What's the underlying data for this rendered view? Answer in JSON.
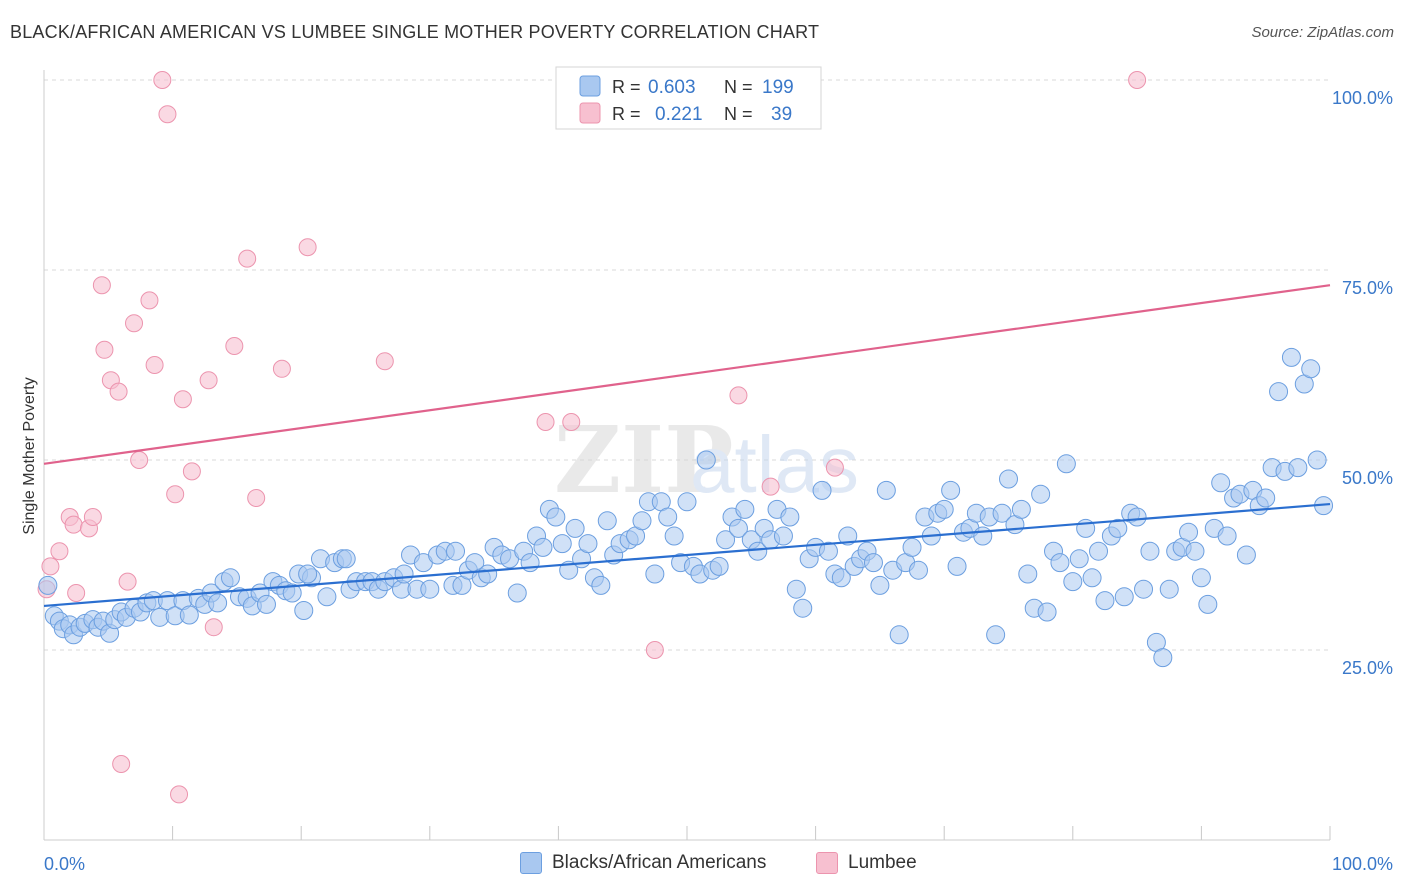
{
  "header": {
    "title": "BLACK/AFRICAN AMERICAN VS LUMBEE SINGLE MOTHER POVERTY CORRELATION CHART",
    "source": "Source: ZipAtlas.com"
  },
  "watermark": {
    "part1": "ZIP",
    "part2": "atlas"
  },
  "colors": {
    "blue_fill": "#a9c8f0",
    "blue_stroke": "#6c9fe0",
    "blue_line": "#2b6fd0",
    "pink_fill": "#f7c0d0",
    "pink_stroke": "#ec94ae",
    "pink_line": "#e0628c",
    "tick_label": "#3a78c9",
    "grid": "#d9d9d9"
  },
  "legend_top": {
    "rows": [
      {
        "r_label": "R =",
        "r_value": "0.603",
        "n_label": "N =",
        "n_value": "199"
      },
      {
        "r_label": "R =",
        "r_value": "0.221",
        "n_label": "N =",
        "n_value": "39"
      }
    ]
  },
  "legend_bottom": {
    "items": [
      "Blacks/African Americans",
      "Lumbee"
    ]
  },
  "chart_data": {
    "type": "scatter",
    "title": "BLACK/AFRICAN AMERICAN VS LUMBEE SINGLE MOTHER POVERTY CORRELATION CHART",
    "xlabel": "",
    "ylabel": "Single Mother Poverty",
    "xlim": [
      0,
      100
    ],
    "ylim": [
      0,
      105
    ],
    "y_ticks": [
      25,
      50,
      75,
      100
    ],
    "y_tick_labels": [
      "25.0%",
      "50.0%",
      "75.0%",
      "100.0%"
    ],
    "x_tick_labels": [
      "0.0%",
      "100.0%"
    ],
    "grid": true,
    "series": [
      {
        "name": "Blacks/African Americans",
        "R": 0.603,
        "N": 199,
        "trend": [
          [
            0,
            30.8
          ],
          [
            100,
            44.2
          ]
        ],
        "points": [
          [
            0.3,
            33.5
          ],
          [
            0.8,
            29.5
          ],
          [
            1.2,
            28.8
          ],
          [
            1.5,
            27.8
          ],
          [
            2.0,
            28.3
          ],
          [
            2.3,
            27.0
          ],
          [
            2.8,
            28.0
          ],
          [
            3.2,
            28.5
          ],
          [
            3.8,
            29.0
          ],
          [
            4.2,
            28.0
          ],
          [
            4.6,
            28.8
          ],
          [
            5.1,
            27.2
          ],
          [
            5.5,
            29.0
          ],
          [
            6.0,
            30.0
          ],
          [
            6.4,
            29.3
          ],
          [
            7.0,
            30.5
          ],
          [
            7.5,
            30.0
          ],
          [
            8.0,
            31.2
          ],
          [
            8.5,
            31.5
          ],
          [
            9.0,
            29.3
          ],
          [
            9.6,
            31.5
          ],
          [
            10.2,
            29.5
          ],
          [
            10.8,
            31.5
          ],
          [
            11.3,
            29.6
          ],
          [
            12.0,
            31.8
          ],
          [
            12.5,
            31.0
          ],
          [
            13.0,
            32.5
          ],
          [
            13.5,
            31.2
          ],
          [
            14.0,
            34.0
          ],
          [
            14.5,
            34.5
          ],
          [
            15.2,
            32.0
          ],
          [
            15.8,
            31.8
          ],
          [
            16.2,
            30.8
          ],
          [
            16.8,
            32.5
          ],
          [
            17.3,
            31.0
          ],
          [
            17.8,
            34.0
          ],
          [
            18.3,
            33.5
          ],
          [
            18.8,
            32.8
          ],
          [
            19.3,
            32.5
          ],
          [
            19.8,
            35.0
          ],
          [
            20.2,
            30.2
          ],
          [
            20.8,
            34.5
          ],
          [
            21.5,
            37.0
          ],
          [
            22.0,
            32.0
          ],
          [
            22.6,
            36.5
          ],
          [
            23.2,
            37.0
          ],
          [
            23.8,
            33.0
          ],
          [
            24.3,
            34.0
          ],
          [
            25.0,
            34.0
          ],
          [
            25.5,
            34.0
          ],
          [
            26.0,
            33.0
          ],
          [
            26.5,
            34.0
          ],
          [
            27.2,
            34.5
          ],
          [
            27.8,
            33.0
          ],
          [
            28.5,
            37.5
          ],
          [
            29.0,
            33.0
          ],
          [
            29.5,
            36.5
          ],
          [
            30.0,
            33.0
          ],
          [
            30.6,
            37.5
          ],
          [
            31.2,
            38.0
          ],
          [
            31.8,
            33.5
          ],
          [
            32.5,
            33.5
          ],
          [
            33.0,
            35.5
          ],
          [
            33.5,
            36.5
          ],
          [
            34.0,
            34.5
          ],
          [
            34.5,
            35.0
          ],
          [
            35.0,
            38.5
          ],
          [
            35.6,
            37.5
          ],
          [
            36.2,
            37.0
          ],
          [
            36.8,
            32.5
          ],
          [
            37.3,
            38.0
          ],
          [
            37.8,
            36.5
          ],
          [
            38.3,
            40.0
          ],
          [
            38.8,
            38.5
          ],
          [
            39.3,
            43.5
          ],
          [
            39.8,
            42.5
          ],
          [
            40.3,
            39.0
          ],
          [
            40.8,
            35.5
          ],
          [
            41.3,
            41.0
          ],
          [
            41.8,
            37.0
          ],
          [
            42.3,
            39.0
          ],
          [
            42.8,
            34.5
          ],
          [
            43.3,
            33.5
          ],
          [
            43.8,
            42.0
          ],
          [
            44.3,
            37.5
          ],
          [
            44.8,
            39.0
          ],
          [
            45.5,
            39.5
          ],
          [
            46.0,
            40.0
          ],
          [
            46.5,
            42.0
          ],
          [
            47.0,
            44.5
          ],
          [
            47.5,
            35.0
          ],
          [
            48.0,
            44.5
          ],
          [
            48.5,
            42.5
          ],
          [
            49.0,
            40.0
          ],
          [
            49.5,
            36.5
          ],
          [
            50.0,
            44.5
          ],
          [
            50.5,
            36.0
          ],
          [
            51.0,
            35.0
          ],
          [
            51.5,
            50.0
          ],
          [
            52.0,
            35.5
          ],
          [
            52.5,
            36.0
          ],
          [
            53.0,
            39.5
          ],
          [
            53.5,
            42.5
          ],
          [
            54.0,
            41.0
          ],
          [
            54.5,
            43.5
          ],
          [
            55.0,
            39.5
          ],
          [
            55.5,
            38.0
          ],
          [
            56.0,
            41.0
          ],
          [
            56.5,
            39.5
          ],
          [
            57.0,
            43.5
          ],
          [
            57.5,
            40.0
          ],
          [
            58.0,
            42.5
          ],
          [
            58.5,
            33.0
          ],
          [
            59.0,
            30.5
          ],
          [
            59.5,
            37.0
          ],
          [
            60.0,
            38.5
          ],
          [
            60.5,
            46.0
          ],
          [
            61.0,
            38.0
          ],
          [
            61.5,
            35.0
          ],
          [
            62.0,
            34.5
          ],
          [
            62.5,
            40.0
          ],
          [
            63.0,
            36.0
          ],
          [
            63.5,
            37.0
          ],
          [
            64.0,
            38.0
          ],
          [
            64.5,
            36.5
          ],
          [
            65.0,
            33.5
          ],
          [
            65.5,
            46.0
          ],
          [
            66.0,
            35.5
          ],
          [
            66.5,
            27.0
          ],
          [
            67.0,
            36.5
          ],
          [
            67.5,
            38.5
          ],
          [
            68.0,
            35.5
          ],
          [
            68.5,
            42.5
          ],
          [
            69.0,
            40.0
          ],
          [
            69.5,
            43.0
          ],
          [
            70.0,
            43.5
          ],
          [
            70.5,
            46.0
          ],
          [
            71.0,
            36.0
          ],
          [
            71.5,
            40.5
          ],
          [
            72.0,
            41.0
          ],
          [
            72.5,
            43.0
          ],
          [
            73.0,
            40.0
          ],
          [
            73.5,
            42.5
          ],
          [
            74.0,
            27.0
          ],
          [
            74.5,
            43.0
          ],
          [
            75.0,
            47.5
          ],
          [
            75.5,
            41.5
          ],
          [
            76.0,
            43.5
          ],
          [
            76.5,
            35.0
          ],
          [
            77.0,
            30.5
          ],
          [
            77.5,
            45.5
          ],
          [
            78.0,
            30.0
          ],
          [
            78.5,
            38.0
          ],
          [
            79.0,
            36.5
          ],
          [
            79.5,
            49.5
          ],
          [
            80.0,
            34.0
          ],
          [
            80.5,
            37.0
          ],
          [
            81.0,
            41.0
          ],
          [
            81.5,
            34.5
          ],
          [
            82.0,
            38.0
          ],
          [
            82.5,
            31.5
          ],
          [
            83.0,
            40.0
          ],
          [
            83.5,
            41.0
          ],
          [
            84.0,
            32.0
          ],
          [
            84.5,
            43.0
          ],
          [
            85.0,
            42.5
          ],
          [
            85.5,
            33.0
          ],
          [
            86.0,
            38.0
          ],
          [
            86.5,
            26.0
          ],
          [
            87.0,
            24.0
          ],
          [
            87.5,
            33.0
          ],
          [
            88.0,
            38.0
          ],
          [
            88.5,
            38.5
          ],
          [
            89.0,
            40.5
          ],
          [
            89.5,
            38.0
          ],
          [
            90.0,
            34.5
          ],
          [
            90.5,
            31.0
          ],
          [
            91.0,
            41.0
          ],
          [
            91.5,
            47.0
          ],
          [
            92.0,
            40.0
          ],
          [
            92.5,
            45.0
          ],
          [
            93.0,
            45.5
          ],
          [
            93.5,
            37.5
          ],
          [
            94.0,
            46.0
          ],
          [
            94.5,
            44.0
          ],
          [
            95.0,
            45.0
          ],
          [
            95.5,
            49.0
          ],
          [
            96.5,
            48.5
          ],
          [
            96.0,
            59.0
          ],
          [
            97.0,
            63.5
          ],
          [
            97.5,
            49.0
          ],
          [
            98.0,
            60.0
          ],
          [
            98.5,
            62.0
          ],
          [
            99.0,
            50.0
          ],
          [
            99.5,
            44.0
          ],
          [
            20.5,
            35.0
          ],
          [
            23.5,
            37.0
          ],
          [
            28.0,
            35.0
          ],
          [
            32.0,
            38.0
          ]
        ]
      },
      {
        "name": "Lumbee",
        "R": 0.221,
        "N": 39,
        "trend": [
          [
            0,
            49.5
          ],
          [
            100,
            73.0
          ]
        ],
        "points": [
          [
            0.2,
            33.0
          ],
          [
            0.5,
            36.0
          ],
          [
            1.2,
            38.0
          ],
          [
            2.0,
            42.5
          ],
          [
            2.3,
            41.5
          ],
          [
            3.5,
            41.0
          ],
          [
            3.8,
            42.5
          ],
          [
            4.5,
            73.0
          ],
          [
            4.7,
            64.5
          ],
          [
            5.2,
            60.5
          ],
          [
            5.8,
            59.0
          ],
          [
            6.5,
            34.0
          ],
          [
            7.0,
            68.0
          ],
          [
            7.4,
            50.0
          ],
          [
            8.2,
            71.0
          ],
          [
            8.6,
            62.5
          ],
          [
            9.2,
            100.0
          ],
          [
            9.6,
            95.5
          ],
          [
            10.2,
            45.5
          ],
          [
            10.8,
            58.0
          ],
          [
            11.5,
            48.5
          ],
          [
            12.8,
            60.5
          ],
          [
            13.2,
            28.0
          ],
          [
            14.8,
            65.0
          ],
          [
            15.8,
            76.5
          ],
          [
            16.5,
            45.0
          ],
          [
            18.5,
            62.0
          ],
          [
            20.5,
            78.0
          ],
          [
            26.5,
            63.0
          ],
          [
            39.0,
            55.0
          ],
          [
            41.0,
            55.0
          ],
          [
            47.5,
            25.0
          ],
          [
            54.0,
            58.5
          ],
          [
            56.5,
            46.5
          ],
          [
            61.5,
            49.0
          ],
          [
            85.0,
            100.0
          ],
          [
            6.0,
            10.0
          ],
          [
            10.5,
            6.0
          ],
          [
            2.5,
            32.5
          ]
        ]
      }
    ]
  }
}
